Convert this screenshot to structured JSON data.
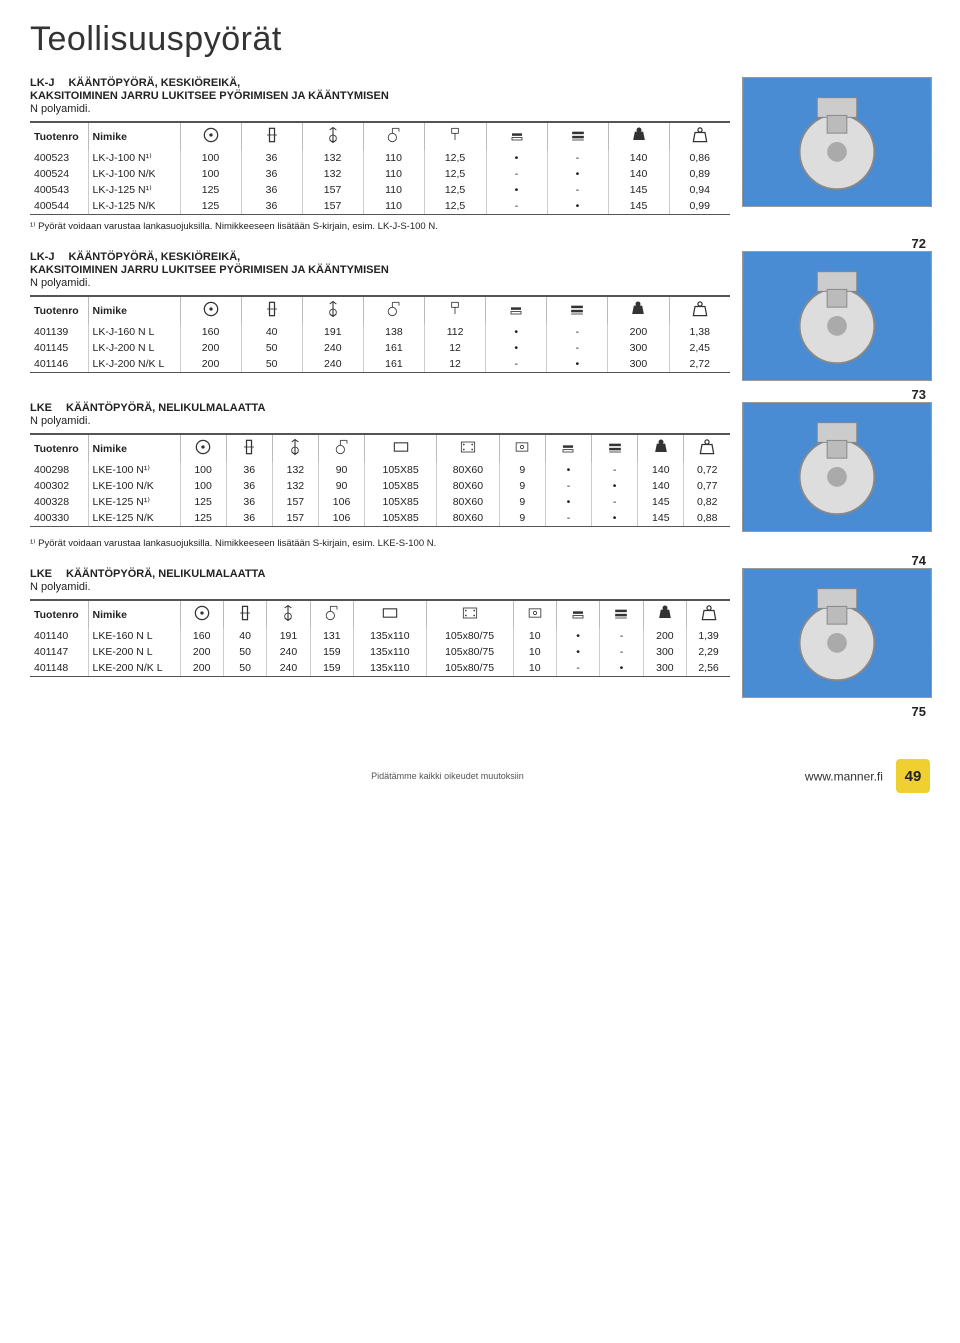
{
  "page_title": "Teollisuuspyörät",
  "footer": {
    "center": "Pidätämme kaikki oikeudet muutoksiin",
    "url": "www.manner.fi",
    "page_num": "49"
  },
  "labels": {
    "tuotenro": "Tuotenro",
    "nimike": "Nimike"
  },
  "sections": [
    {
      "code": "LK-J",
      "title": "KÄÄNTÖPYÖRÄ, KESKIÖREIKÄ,",
      "title2": "KAKSITOIMINEN JARRU LUKITSEE PYÖRIMISEN JA KÄÄNTYMISEN",
      "sub": "N polyamidi.",
      "cols": [
        "icon_bolt",
        "icon_width",
        "icon_height",
        "icon_offset",
        "icon_hole",
        "icon_brake1",
        "icon_brake2",
        "icon_load",
        "icon_weight"
      ],
      "rows": [
        [
          "400523",
          "LK-J-100 N¹⁾",
          "100",
          "36",
          "132",
          "110",
          "12,5",
          "•",
          "-",
          "140",
          "0,86"
        ],
        [
          "400524",
          "LK-J-100 N/K",
          "100",
          "36",
          "132",
          "110",
          "12,5",
          "-",
          "•",
          "140",
          "0,89"
        ],
        [
          "400543",
          "LK-J-125 N¹⁾",
          "125",
          "36",
          "157",
          "110",
          "12,5",
          "•",
          "-",
          "145",
          "0,94"
        ],
        [
          "400544",
          "LK-J-125 N/K",
          "125",
          "36",
          "157",
          "110",
          "12,5",
          "-",
          "•",
          "145",
          "0,99"
        ]
      ],
      "footnote": "¹⁾ Pyörät voidaan varustaa lankasuojuksilla. Nimikkeeseen lisätään S-kirjain, esim. LK-J-S-100 N.",
      "idx": "72"
    },
    {
      "code": "LK-J",
      "title": "KÄÄNTÖPYÖRÄ, KESKIÖREIKÄ,",
      "title2": "KAKSITOIMINEN JARRU LUKITSEE PYÖRIMISEN JA KÄÄNTYMISEN",
      "sub": "N polyamidi.",
      "cols": [
        "icon_bolt",
        "icon_width",
        "icon_height",
        "icon_offset",
        "icon_hole",
        "icon_brake1",
        "icon_brake2",
        "icon_load",
        "icon_weight"
      ],
      "rows": [
        [
          "401139",
          "LK-J-160 N L",
          "160",
          "40",
          "191",
          "138",
          "112",
          "•",
          "-",
          "200",
          "1,38"
        ],
        [
          "401145",
          "LK-J-200 N L",
          "200",
          "50",
          "240",
          "161",
          "12",
          "•",
          "-",
          "300",
          "2,45"
        ],
        [
          "401146",
          "LK-J-200 N/K L",
          "200",
          "50",
          "240",
          "161",
          "12",
          "-",
          "•",
          "300",
          "2,72"
        ]
      ],
      "footnote": "",
      "idx": "73"
    },
    {
      "code": "LKE",
      "title": "KÄÄNTÖPYÖRÄ, NELIKULMALAATTA",
      "title2": "",
      "sub": "N polyamidi.",
      "cols": [
        "icon_bolt",
        "icon_width",
        "icon_height",
        "icon_offset",
        "icon_plate",
        "icon_bolt_pattern",
        "icon_bolt_dia",
        "icon_brake1",
        "icon_brake2",
        "icon_load",
        "icon_weight"
      ],
      "rows": [
        [
          "400298",
          "LKE-100 N¹⁾",
          "100",
          "36",
          "132",
          "90",
          "105X85",
          "80X60",
          "9",
          "•",
          "-",
          "140",
          "0,72"
        ],
        [
          "400302",
          "LKE-100 N/K",
          "100",
          "36",
          "132",
          "90",
          "105X85",
          "80X60",
          "9",
          "-",
          "•",
          "140",
          "0,77"
        ],
        [
          "400328",
          "LKE-125 N¹⁾",
          "125",
          "36",
          "157",
          "106",
          "105X85",
          "80X60",
          "9",
          "•",
          "-",
          "145",
          "0,82"
        ],
        [
          "400330",
          "LKE-125 N/K",
          "125",
          "36",
          "157",
          "106",
          "105X85",
          "80X60",
          "9",
          "-",
          "•",
          "145",
          "0,88"
        ]
      ],
      "footnote": "¹⁾ Pyörät voidaan varustaa lankasuojuksilla. Nimikkeeseen lisätään S-kirjain, esim. LKE-S-100 N.",
      "idx": "74"
    },
    {
      "code": "LKE",
      "title": "KÄÄNTÖPYÖRÄ, NELIKULMALAATTA",
      "title2": "",
      "sub": "N polyamidi.",
      "cols": [
        "icon_bolt",
        "icon_width",
        "icon_height",
        "icon_offset",
        "icon_plate",
        "icon_bolt_pattern",
        "icon_bolt_dia",
        "icon_brake1",
        "icon_brake2",
        "icon_load",
        "icon_weight"
      ],
      "rows": [
        [
          "401140",
          "LKE-160 N L",
          "160",
          "40",
          "191",
          "131",
          "135x110",
          "105x80/75",
          "10",
          "•",
          "-",
          "200",
          "1,39"
        ],
        [
          "401147",
          "LKE-200 N L",
          "200",
          "50",
          "240",
          "159",
          "135x110",
          "105x80/75",
          "10",
          "•",
          "-",
          "300",
          "2,29"
        ],
        [
          "401148",
          "LKE-200 N/K L",
          "200",
          "50",
          "240",
          "159",
          "135x110",
          "105x80/75",
          "10",
          "-",
          "•",
          "300",
          "2,56"
        ]
      ],
      "footnote": "",
      "idx": "75"
    }
  ],
  "icons": {
    "icon_bolt": "wheel-dia-icon",
    "icon_width": "wheel-width-icon",
    "icon_height": "total-height-icon",
    "icon_offset": "offset-icon",
    "icon_hole": "bolt-hole-icon",
    "icon_plate": "plate-size-icon",
    "icon_bolt_pattern": "bolt-pattern-icon",
    "icon_bolt_dia": "bolt-dia-icon",
    "icon_brake1": "brake-type1-icon",
    "icon_brake2": "brake-type2-icon",
    "icon_load": "load-capacity-icon",
    "icon_weight": "weight-icon"
  }
}
